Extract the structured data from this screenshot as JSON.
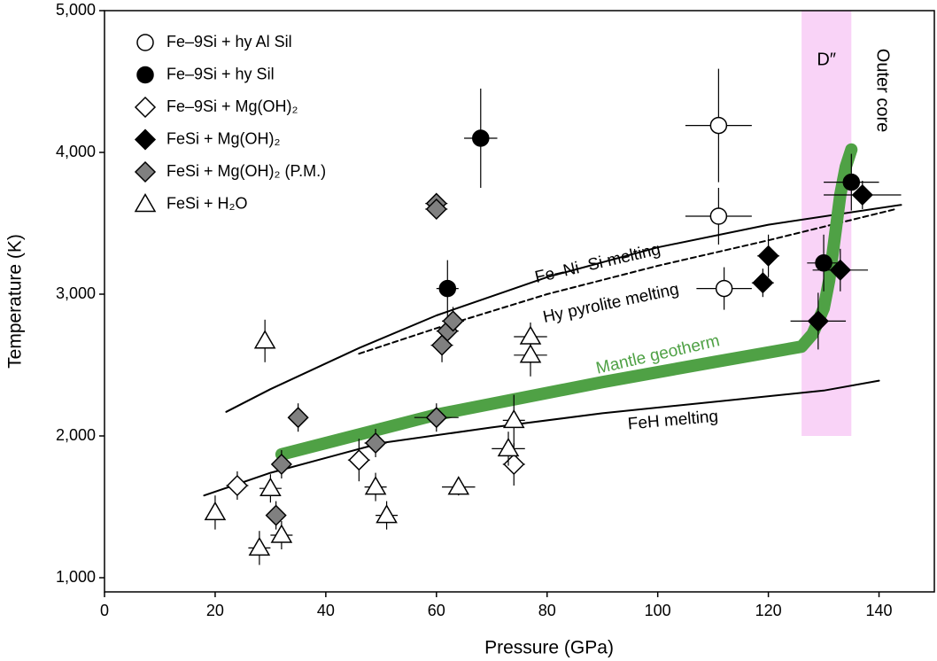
{
  "chart_data": {
    "type": "scatter",
    "xlabel": "Pressure (GPa)",
    "ylabel": "Temperature (K)",
    "xlim": [
      0,
      150
    ],
    "xticks": [
      0,
      20,
      40,
      60,
      80,
      100,
      120,
      140
    ],
    "ylim": [
      900,
      5000
    ],
    "yticks": [
      {
        "value": 1000,
        "label": "1,000"
      },
      {
        "value": 2000,
        "label": "2,000"
      },
      {
        "value": 3000,
        "label": "3,000"
      },
      {
        "value": 4000,
        "label": "4,000"
      },
      {
        "value": 5000,
        "label": "5,000"
      }
    ],
    "legend": "upper left",
    "series": [
      {
        "name": "Fe–9Si + hy Al Sil",
        "marker": "circle",
        "color": "#ffffff",
        "x": [
          111,
          111,
          112
        ],
        "values": [
          4190,
          3550,
          3040
        ],
        "xerr": [
          6,
          6,
          5
        ],
        "yerr": [
          400,
          200,
          150
        ]
      },
      {
        "name": "Fe–9Si + hy Sil",
        "marker": "circle",
        "color": "#000000",
        "x": [
          68,
          62,
          130,
          135
        ],
        "values": [
          4100,
          3040,
          3220,
          3790
        ],
        "xerr": [
          3,
          2,
          3,
          5
        ],
        "yerr": [
          350,
          200,
          200,
          200
        ]
      },
      {
        "name": "Fe–9Si + Mg(OH)₂",
        "marker": "diamond",
        "color": "#ffffff",
        "x": [
          24,
          46,
          74
        ],
        "values": [
          1650,
          1830,
          1800
        ],
        "xerr": [
          2,
          2,
          2
        ],
        "yerr": [
          100,
          150,
          150
        ]
      },
      {
        "name": "FeSi + Mg(OH)₂",
        "marker": "diamond",
        "color": "#000000",
        "x": [
          120,
          119,
          129,
          133,
          137
        ],
        "values": [
          3270,
          3080,
          2810,
          3170,
          3700
        ],
        "xerr": [
          2,
          2,
          5,
          5,
          7
        ],
        "yerr": [
          150,
          100,
          200,
          150,
          100
        ]
      },
      {
        "name": "FeSi + Mg(OH)₂ (P.M.)",
        "marker": "diamond",
        "color": "#808080",
        "x": [
          60,
          60,
          62,
          63,
          61,
          35,
          60,
          49,
          32,
          31
        ],
        "values": [
          3640,
          3600,
          2740,
          2810,
          2640,
          2130,
          2130,
          1950,
          1800,
          1440
        ],
        "xerr": [
          2,
          2,
          2,
          2,
          2,
          1,
          4,
          2,
          1,
          1
        ],
        "yerr": [
          60,
          60,
          100,
          100,
          120,
          100,
          100,
          100,
          100,
          100
        ]
      },
      {
        "name": "FeSi + H₂O",
        "marker": "triangle",
        "color": "#ffffff",
        "x": [
          20,
          28,
          30,
          32,
          29,
          49,
          51,
          64,
          73,
          74,
          77,
          77
        ],
        "values": [
          1460,
          1210,
          1630,
          1300,
          2670,
          1640,
          1440,
          1640,
          1910,
          2110,
          2700,
          2570
        ],
        "xerr": [
          1,
          2,
          2,
          2,
          1,
          2,
          2,
          3,
          3,
          2,
          3,
          3
        ],
        "yerr": [
          120,
          120,
          100,
          100,
          150,
          100,
          100,
          60,
          120,
          180,
          100,
          150
        ]
      }
    ],
    "lines": [
      {
        "name": "Fe–Ni–Si melting",
        "color": "#000000",
        "dashed": false,
        "thick": false,
        "x": [
          22,
          30,
          46,
          60,
          80,
          100,
          120,
          144
        ],
        "values": [
          2170,
          2330,
          2620,
          2850,
          3120,
          3330,
          3490,
          3630
        ]
      },
      {
        "name": "Hy pyrolite melting",
        "color": "#000000",
        "dashed": true,
        "thick": false,
        "x": [
          46,
          60,
          80,
          100,
          120,
          143
        ],
        "values": [
          2580,
          2760,
          3000,
          3200,
          3380,
          3600
        ]
      },
      {
        "name": "FeH melting",
        "color": "#000000",
        "dashed": false,
        "thick": false,
        "x": [
          18,
          30,
          50,
          70,
          90,
          110,
          130,
          140
        ],
        "values": [
          1580,
          1740,
          1950,
          2060,
          2160,
          2240,
          2320,
          2390
        ]
      },
      {
        "name": "Mantle geotherm",
        "color": "#4fa145",
        "dashed": false,
        "thick": true,
        "x": [
          32,
          60,
          90,
          110,
          126,
          128,
          130,
          131,
          132,
          133,
          134,
          135
        ],
        "values": [
          1870,
          2150,
          2380,
          2520,
          2630,
          2720,
          2900,
          3100,
          3400,
          3700,
          3900,
          4020
        ]
      }
    ],
    "band": {
      "label": "D″",
      "x": [
        126,
        135
      ],
      "y": [
        2000,
        5000
      ],
      "color": "#f9d3f7"
    },
    "annotation": "Outer core"
  }
}
